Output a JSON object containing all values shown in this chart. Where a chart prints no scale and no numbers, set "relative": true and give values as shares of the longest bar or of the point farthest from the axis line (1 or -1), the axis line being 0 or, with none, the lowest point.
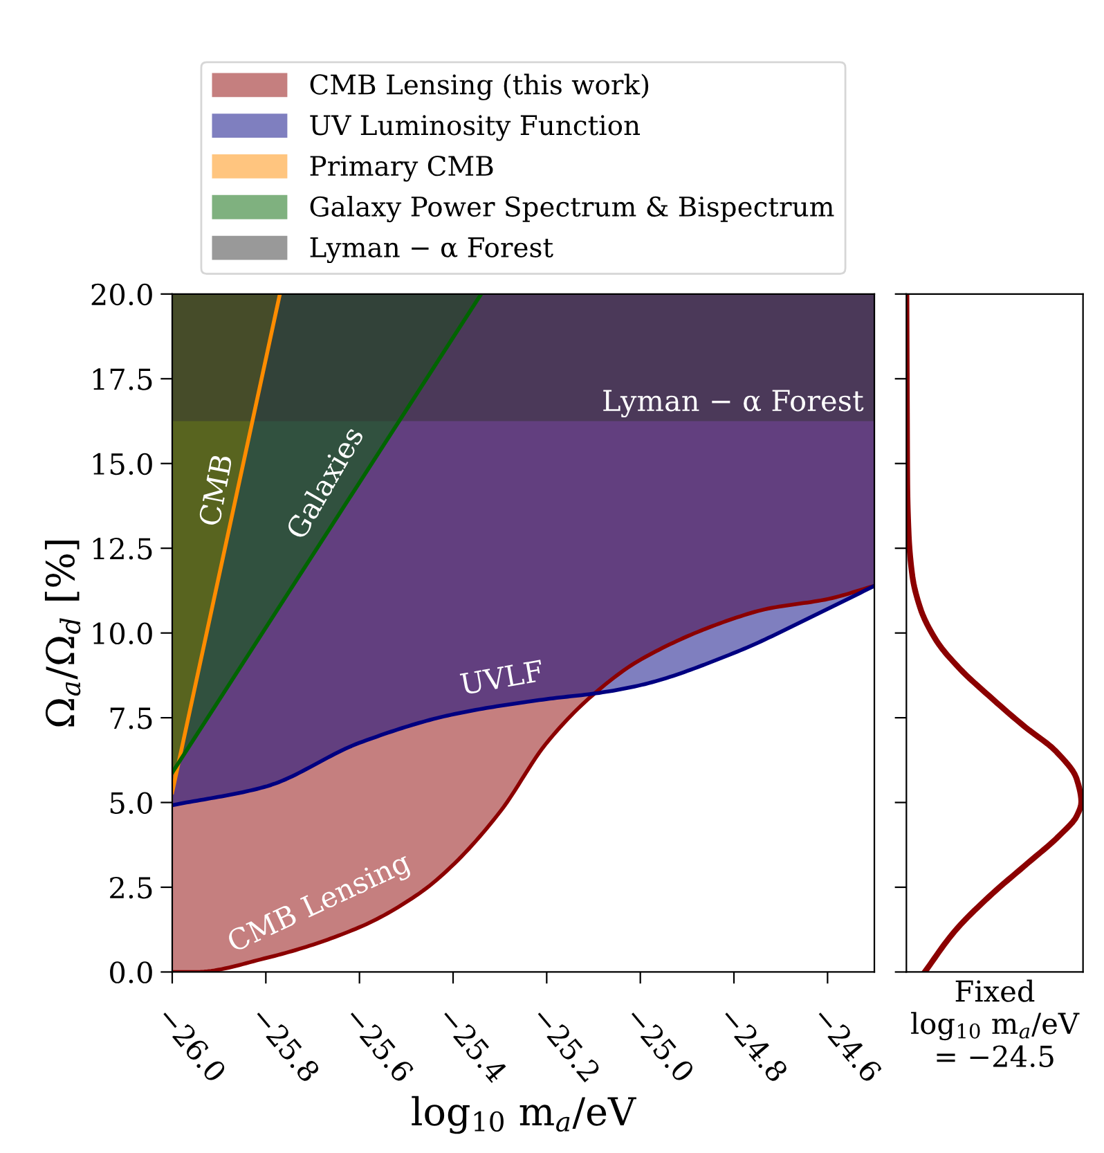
{
  "chart_data": [
    {
      "type": "line",
      "xlabel": "log$_{10}$ m$_{a}$/eV",
      "ylabel": "Ω$_{a}$/Ω$_{d}$ [%]",
      "xlim": [
        -26.0,
        -24.5
      ],
      "ylim": [
        0,
        20
      ],
      "xticks": [
        {
          "value": -26.0,
          "label": "−26.0"
        },
        {
          "value": -25.8,
          "label": "−25.8"
        },
        {
          "value": -25.6,
          "label": "−25.6"
        },
        {
          "value": -25.4,
          "label": "−25.4"
        },
        {
          "value": -25.2,
          "label": "−25.2"
        },
        {
          "value": -25.0,
          "label": "−25.0"
        },
        {
          "value": -24.8,
          "label": "−24.8"
        },
        {
          "value": -24.6,
          "label": "−24.6"
        }
      ],
      "yticks": [
        {
          "value": 0,
          "label": "0.0"
        },
        {
          "value": 2.5,
          "label": "2.5"
        },
        {
          "value": 5,
          "label": "5.0"
        },
        {
          "value": 7.5,
          "label": "7.5"
        },
        {
          "value": 10,
          "label": "10.0"
        },
        {
          "value": 12.5,
          "label": "12.5"
        },
        {
          "value": 15,
          "label": "15.0"
        },
        {
          "value": 17.5,
          "label": "17.5"
        },
        {
          "value": 20,
          "label": "20.0"
        }
      ],
      "grid": false,
      "legend": "top",
      "series": [
        {
          "name": "CMB Lensing (this work)",
          "color": "#8b0000",
          "x": [
            -26.0,
            -25.95,
            -25.8,
            -25.6,
            -25.47,
            -25.4,
            -25.3,
            -25.2,
            -25.1,
            -25.0,
            -24.8,
            -24.73,
            -24.6,
            -24.5
          ],
          "values": [
            0,
            0,
            0.41,
            1.32,
            2.34,
            3.16,
            4.72,
            6.76,
            8.19,
            9.21,
            10.43,
            10.71,
            11.0,
            11.39
          ],
          "lower": [
            0,
            0,
            0.41,
            1.32,
            2.34,
            3.16,
            4.72,
            6.76,
            8.19,
            9.21,
            10.43,
            10.71,
            11.0,
            11.39
          ],
          "upper": [
            20,
            20,
            20,
            20,
            20,
            20,
            20,
            20,
            20,
            20,
            20,
            20,
            20,
            20
          ]
        },
        {
          "name": "UV Luminosity Function",
          "color": "#000080",
          "x": [
            -26.0,
            -25.8,
            -25.6,
            -25.4,
            -25.2,
            -25.09,
            -25.0,
            -24.8,
            -24.6,
            -24.5
          ],
          "values": [
            4.92,
            5.47,
            6.76,
            7.6,
            8.05,
            8.23,
            8.46,
            9.41,
            10.71,
            11.39
          ],
          "lower": [
            4.92,
            5.47,
            6.76,
            7.6,
            8.05,
            8.23,
            8.46,
            9.41,
            10.71,
            11.39
          ],
          "upper": [
            20,
            20,
            20,
            20,
            20,
            20,
            20,
            20,
            20,
            20
          ]
        },
        {
          "name": "Primary CMB",
          "color": "#ff8c00",
          "x": [
            -26.0,
            -25.77
          ],
          "values": [
            5.3,
            20
          ],
          "lower": [
            5.3,
            20
          ],
          "upper": [
            20,
            20
          ]
        },
        {
          "name": "Galaxy Power Spectrum & Bispectrum",
          "color": "#006400",
          "x": [
            -26.0,
            -25.34
          ],
          "values": [
            5.88,
            20
          ],
          "lower": [
            5.88,
            20
          ],
          "upper": [
            20,
            20
          ]
        }
      ],
      "bands": [
        {
          "axis": "y",
          "from": 16.25,
          "to": 20,
          "label": "Lyman − α Forest",
          "color": "#333333"
        }
      ],
      "annotations": [
        "CMB",
        "Galaxies",
        "UVLF",
        "CMB Lensing",
        "Lyman − α Forest"
      ]
    },
    {
      "type": "line",
      "orientation": "horizontal",
      "relative": true,
      "xlabel": "Fixed\nlog$_{10}$ m$_{a}$/eV\n= −24.5",
      "ylim": [
        0,
        20
      ],
      "yticks": [
        0,
        2.5,
        5,
        7.5,
        10,
        12.5,
        15,
        17.5,
        20
      ],
      "tick_labels": false,
      "series": [
        {
          "color": "#8b0000",
          "x": [
            0,
            1.2,
            2.29,
            3.11,
            4.06,
            4.6,
            5.01,
            5.69,
            6.51,
            7.26,
            8.08,
            8.96,
            9.78,
            10.74,
            11.69,
            12.92,
            14.41,
            16.46,
            20
          ],
          "values": [
            0.105,
            0.276,
            0.487,
            0.671,
            0.882,
            0.974,
            1.0,
            0.974,
            0.855,
            0.671,
            0.487,
            0.303,
            0.171,
            0.079,
            0.034,
            0.013,
            0.005,
            0.003,
            0
          ]
        }
      ]
    }
  ]
}
